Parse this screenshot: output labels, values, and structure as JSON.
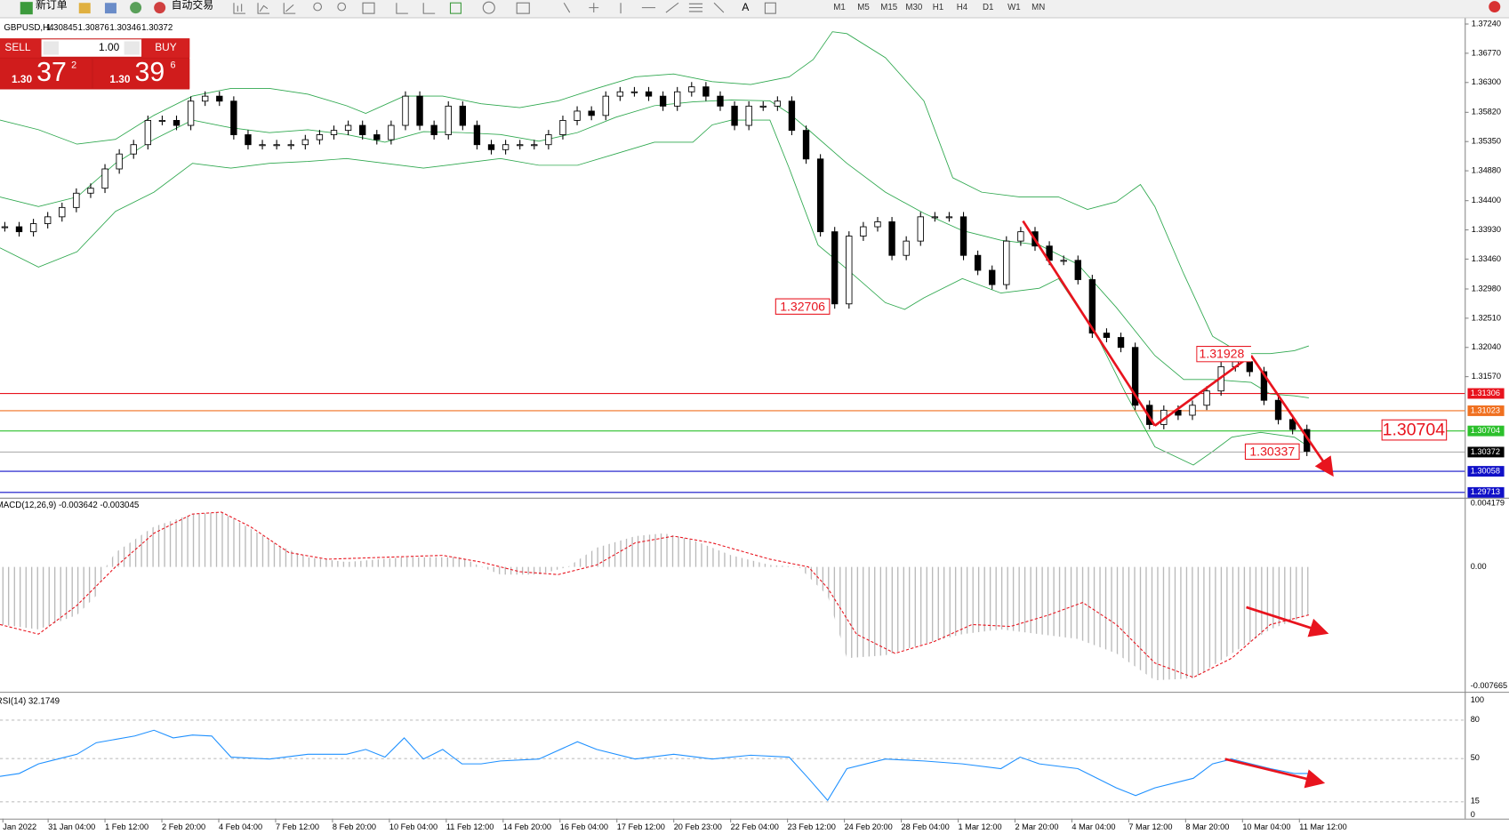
{
  "toolbar": {
    "buttons": [
      "新订单",
      "自动交易"
    ],
    "timeframes": [
      "M1",
      "M5",
      "M15",
      "M30",
      "H1",
      "H4",
      "D1",
      "W1",
      "MN"
    ]
  },
  "chart_header": {
    "symbol": "GBPUSD,H4",
    "ohlc": [
      "1.30845",
      "1.30876",
      "1.30346",
      "1.30372"
    ]
  },
  "trade_panel": {
    "sell": "SELL",
    "lots": "1.00",
    "buy": "BUY",
    "bid": {
      "big_figure": "1.30",
      "pips": "37",
      "fraction": "2"
    },
    "ask": {
      "big_figure": "1.30",
      "pips": "39",
      "fraction": "6"
    }
  },
  "price_chart": {
    "closes": [
      1.3398,
      1.339,
      1.3403,
      1.3414,
      1.3429,
      1.3452,
      1.346,
      1.3491,
      1.3515,
      1.353,
      1.3569,
      1.3569,
      1.3561,
      1.36,
      1.3608,
      1.36,
      1.3546,
      1.353,
      1.353,
      1.353,
      1.353,
      1.3538,
      1.3546,
      1.3553,
      1.3561,
      1.3546,
      1.3538,
      1.3561,
      1.3608,
      1.3561,
      1.3546,
      1.3592,
      1.3561,
      1.353,
      1.3522,
      1.353,
      1.353,
      1.353,
      1.3546,
      1.3569,
      1.3584,
      1.3577,
      1.3608,
      1.3615,
      1.3615,
      1.3608,
      1.3592,
      1.3615,
      1.3623,
      1.3608,
      1.3592,
      1.3561,
      1.3592,
      1.3592,
      1.36,
      1.3553,
      1.3507,
      1.339,
      1.3274,
      1.3383,
      1.3398,
      1.3406,
      1.3352,
      1.3375,
      1.3414,
      1.3414,
      1.3414,
      1.3352,
      1.3328,
      1.3305,
      1.3375,
      1.339,
      1.3367,
      1.3344,
      1.3344,
      1.3313,
      1.3227,
      1.322,
      1.3204,
      1.3111,
      1.308,
      1.3103,
      1.3095,
      1.3111,
      1.3134,
      1.3173,
      1.3181,
      1.3165,
      1.3119,
      1.3088,
      1.3072,
      1.3037
    ],
    "price_axis": [
      "1.37240",
      "1.36770",
      "1.36300",
      "1.35820",
      "1.35350",
      "1.34880",
      "1.34400",
      "1.33930",
      "1.33460",
      "1.32980",
      "1.32510",
      "1.32040",
      "1.31570"
    ],
    "levels": [
      {
        "label": "1.31306",
        "color": "#e8141e"
      },
      {
        "label": "1.31023",
        "color": "#f07020"
      },
      {
        "label": "1.30704",
        "color": "#2cc02c"
      },
      {
        "label": "1.30372",
        "color": "#000000"
      },
      {
        "label": "1.30058",
        "color": "#1010c8"
      },
      {
        "label": "1.29713",
        "color": "#1010c8"
      }
    ],
    "annotations": [
      "1.32706",
      "1.31928",
      "1.30337",
      "1.30704"
    ]
  },
  "macd": {
    "label": "MACD(12,26,9) -0.003642 -0.003045",
    "axis": [
      "0.004179",
      "0.00",
      "-0.007665"
    ]
  },
  "rsi": {
    "label": "RSI(14) 32.1749",
    "axis": [
      "100",
      "80",
      "50",
      "15",
      "0"
    ]
  },
  "time_axis": [
    "Jan 2022",
    "31 Jan 04:00",
    "1 Feb 12:00",
    "2 Feb 20:00",
    "4 Feb 04:00",
    "7 Feb 12:00",
    "8 Feb 20:00",
    "10 Feb 04:00",
    "11 Feb 12:00",
    "14 Feb 20:00",
    "16 Feb 04:00",
    "17 Feb 12:00",
    "20 Feb 23:00",
    "22 Feb 04:00",
    "23 Feb 12:00",
    "24 Feb 20:00",
    "28 Feb 04:00",
    "1 Mar 12:00",
    "2 Mar 20:00",
    "4 Mar 04:00",
    "7 Mar 12:00",
    "8 Mar 20:00",
    "10 Mar 04:00",
    "11 Mar 12:00"
  ]
}
